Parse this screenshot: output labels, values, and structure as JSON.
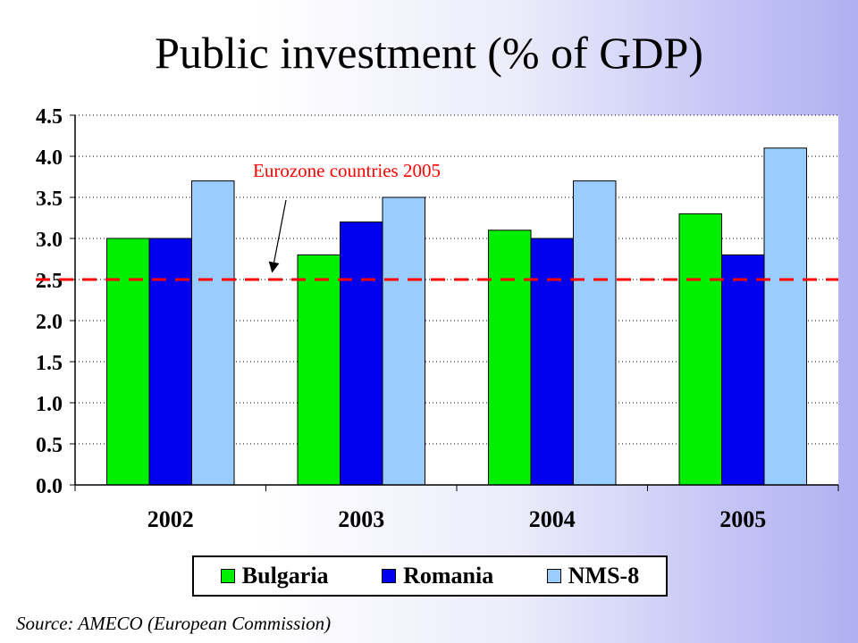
{
  "slide": {
    "title": "Public investment (% of GDP)",
    "source": "Source: AMECO (European Commission)"
  },
  "chart_data": {
    "type": "bar",
    "title": "Public investment (% of GDP)",
    "categories": [
      "2002",
      "2003",
      "2004",
      "2005"
    ],
    "series": [
      {
        "name": "Bulgaria",
        "color": "#00ee00",
        "values": [
          3.0,
          2.8,
          3.1,
          3.3
        ]
      },
      {
        "name": "Romania",
        "color": "#0000ee",
        "values": [
          3.0,
          3.2,
          3.0,
          2.8
        ]
      },
      {
        "name": "NMS-8",
        "color": "#99ccff",
        "values": [
          3.7,
          3.5,
          3.7,
          4.1
        ]
      }
    ],
    "ylim": [
      0,
      4.5
    ],
    "yticks": [
      "0.0",
      "0.5",
      "1.0",
      "1.5",
      "2.0",
      "2.5",
      "3.0",
      "3.5",
      "4.0",
      "4.5"
    ],
    "grid": true,
    "legend": "bottom",
    "reference_line": {
      "label": "Eurozone countries 2005",
      "value": 2.5,
      "color": "#ff0000"
    }
  }
}
